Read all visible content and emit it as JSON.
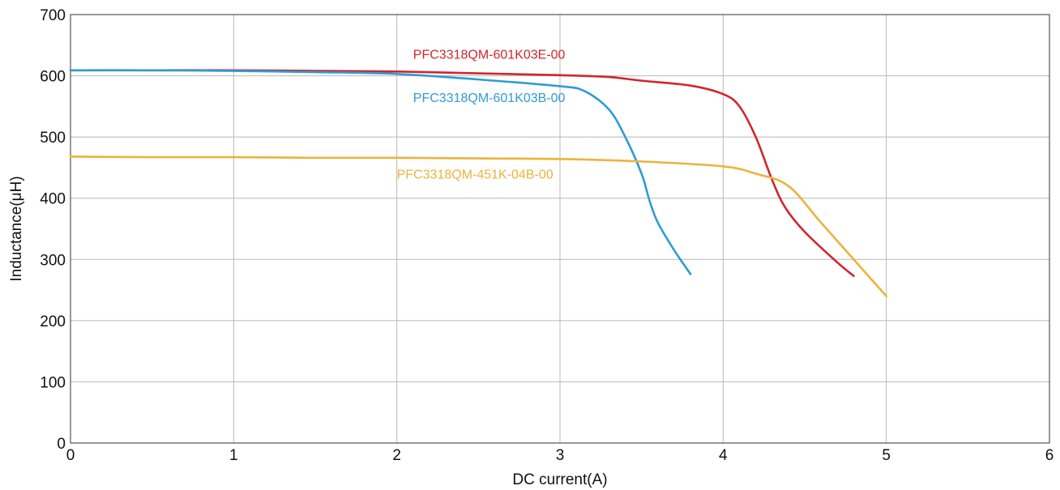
{
  "chart_data": {
    "type": "line",
    "xlabel": "DC current(A)",
    "ylabel": "Inductance(μH)",
    "xlim": [
      0,
      6
    ],
    "ylim": [
      0,
      700
    ],
    "xticks": [
      "0",
      "1",
      "2",
      "3",
      "4",
      "5",
      "6"
    ],
    "yticks": [
      "0",
      "100",
      "200",
      "300",
      "400",
      "500",
      "600",
      "700"
    ],
    "grid": true,
    "series": [
      {
        "name": "PFC3318QM-601K03E-00",
        "color": "#d0272d",
        "x": [
          0,
          0.5,
          1,
          1.5,
          2,
          2.5,
          3,
          3.3,
          3.5,
          3.8,
          4.0,
          4.1,
          4.2,
          4.3,
          4.38,
          4.5,
          4.7,
          4.8
        ],
        "y": [
          609,
          609,
          609,
          608,
          607,
          604,
          601,
          598,
          592,
          584,
          570,
          550,
          500,
          430,
          385,
          345,
          295,
          273
        ]
      },
      {
        "name": "PFC3318QM-601K03B-00",
        "color": "#2e9cd6",
        "x": [
          0,
          0.5,
          1,
          1.5,
          2,
          2.5,
          3,
          3.15,
          3.3,
          3.4,
          3.5,
          3.55,
          3.6,
          3.7,
          3.8
        ],
        "y": [
          609,
          609,
          608,
          606,
          603,
          594,
          583,
          575,
          545,
          500,
          440,
          395,
          360,
          315,
          276
        ]
      },
      {
        "name": "PFC3318QM-451K-04B-00",
        "color": "#ecb33a",
        "x": [
          0,
          0.5,
          1,
          1.5,
          2,
          2.5,
          3,
          3.5,
          4.0,
          4.2,
          4.4,
          4.6,
          4.8,
          5.0
        ],
        "y": [
          468,
          467,
          467,
          466,
          466,
          465,
          464,
          460,
          452,
          440,
          420,
          360,
          300,
          240
        ]
      }
    ],
    "labels": [
      {
        "text": "PFC3318QM-601K03E-00",
        "x": 2.1,
        "y": 628,
        "color": "#d0272d"
      },
      {
        "text": "PFC3318QM-601K03B-00",
        "x": 2.1,
        "y": 557,
        "color": "#2e9cd6"
      },
      {
        "text": "PFC3318QM-451K-04B-00",
        "x": 2.0,
        "y": 432,
        "color": "#ecb33a"
      }
    ]
  }
}
